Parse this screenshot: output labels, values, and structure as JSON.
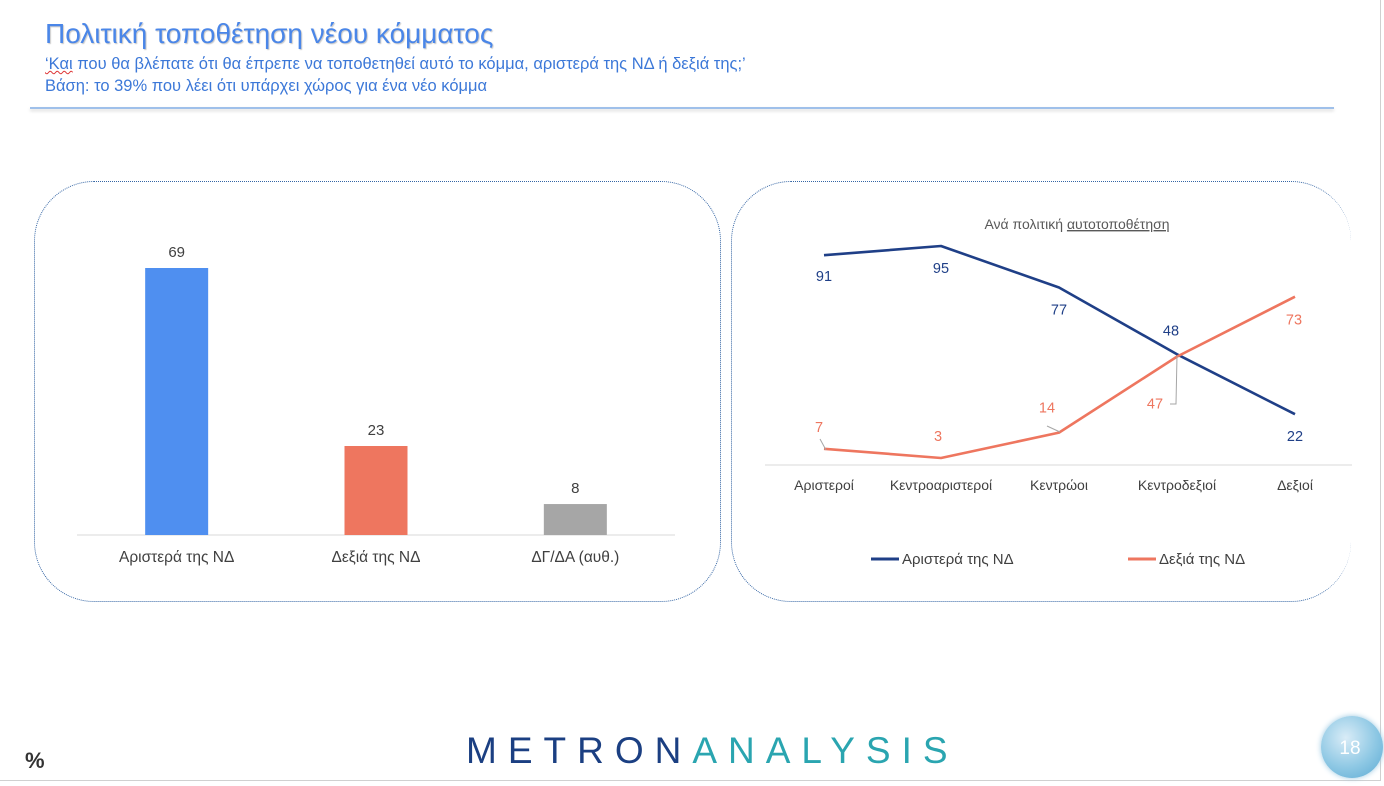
{
  "header": {
    "title": "Πολιτική τοποθέτηση νέου κόμματος",
    "subtitle_mark": "‘Και",
    "subtitle_rest": " που θα βλέπατε ότι θα έπρεπε να τοποθετηθεί αυτό το κόμμα, αριστερά της ΝΔ ή δεξιά της;’",
    "base": "Βάση: το 39% που λέει ότι υπάρχει χώρος για ένα νέο κόμμα"
  },
  "footer": {
    "logo_part1": "METRON",
    "logo_part2": "ANALYSIS",
    "percent_sign": "%",
    "page_number": "18"
  },
  "colors": {
    "title": "#4a86e8",
    "bar_left": "#4f8ff0",
    "bar_right": "#ee765f",
    "bar_dk": "#a6a6a6",
    "line_left": "#1f3f87",
    "line_right": "#ee765f"
  },
  "chart_data": [
    {
      "type": "bar",
      "categories": [
        "Αριστερά της ΝΔ",
        "Δεξιά της ΝΔ",
        "ΔΓ/ΔΑ (αυθ.)"
      ],
      "values": [
        69,
        23,
        8
      ],
      "colors": [
        "#4f8ff0",
        "#ee765f",
        "#a6a6a6"
      ],
      "ylim": [
        0,
        69
      ],
      "grid": false
    },
    {
      "type": "line",
      "title_prefix": "Ανά πολιτική ",
      "title_word": "αυτοτοποθέτηση",
      "categories": [
        "Αριστεροί",
        "Κεντροαριστεροί",
        "Κεντρώοι",
        "Κεντροδεξιοί",
        "Δεξιοί"
      ],
      "series": [
        {
          "name": "Αριστερά της ΝΔ",
          "values": [
            91,
            95,
            77,
            48,
            22
          ],
          "color": "#1f3f87"
        },
        {
          "name": "Δεξιά της ΝΔ",
          "values": [
            7,
            3,
            14,
            47,
            73
          ],
          "color": "#ee765f"
        }
      ],
      "ylim": [
        0,
        100
      ],
      "grid": false,
      "legend": "bottom"
    }
  ]
}
